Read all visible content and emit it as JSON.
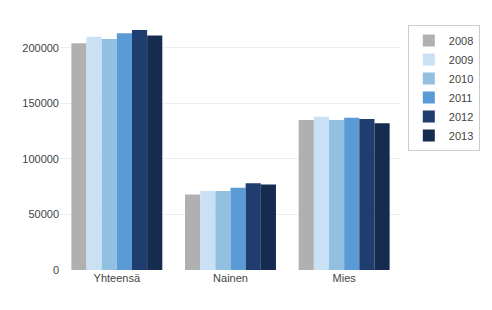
{
  "chart_data": {
    "type": "bar",
    "categories": [
      "Yhteensä",
      "Nainen",
      "Mies"
    ],
    "series": [
      {
        "name": "2008",
        "color": "#b0b0b0",
        "values": [
          204000,
          68000,
          135000
        ]
      },
      {
        "name": "2009",
        "color": "#c9e0f5",
        "values": [
          210000,
          71000,
          138000
        ]
      },
      {
        "name": "2010",
        "color": "#92c0e0",
        "values": [
          208000,
          71000,
          135000
        ]
      },
      {
        "name": "2011",
        "color": "#5b9bd5",
        "values": [
          213000,
          74000,
          137000
        ]
      },
      {
        "name": "2012",
        "color": "#1f3d6e",
        "values": [
          216000,
          78000,
          136000
        ]
      },
      {
        "name": "2013",
        "color": "#152b50",
        "values": [
          211000,
          77000,
          132000
        ]
      }
    ],
    "ylim": [
      0,
      225000
    ],
    "yticks": [
      0,
      50000,
      100000,
      150000,
      200000
    ],
    "grid": true,
    "legend": "right"
  }
}
